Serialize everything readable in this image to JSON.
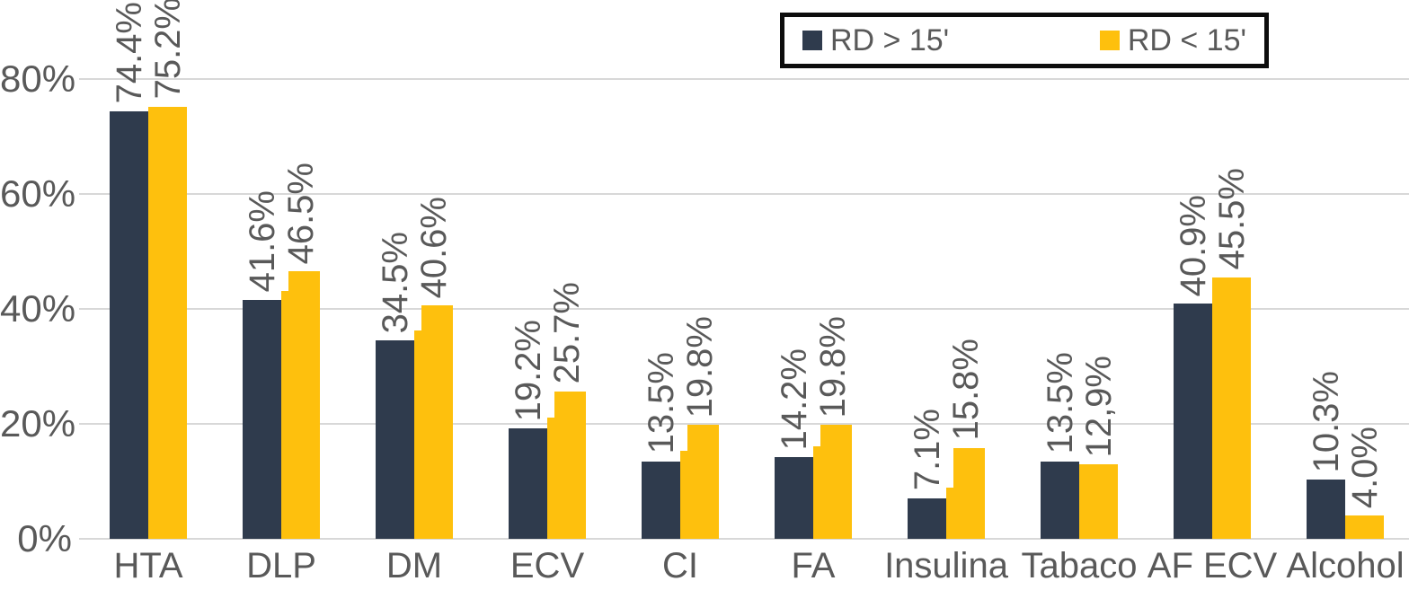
{
  "colors": {
    "bar_dark": "#2F3B4D",
    "bar_yellow": "#FEC00D",
    "text": "#595959",
    "gridline": "#D8D8D8",
    "legend_border": "#0D0D0D",
    "background": "#FFFFFF"
  },
  "chart_data": {
    "type": "bar",
    "title": "",
    "xlabel": "",
    "ylabel": "",
    "categories": [
      "HTA",
      "DLP",
      "DM",
      "ECV",
      "CI",
      "FA",
      "Insulina",
      "Tabaco",
      "AF ECV",
      "Alcohol"
    ],
    "series": [
      {
        "name": "RD > 15'",
        "color": "#2F3B4D",
        "values": [
          74.4,
          41.6,
          34.5,
          19.2,
          13.5,
          14.2,
          7.1,
          13.5,
          40.9,
          10.3
        ],
        "labels": [
          "74.4%",
          "41.6%",
          "34.5%",
          "19.2%",
          "13.5%",
          "14.2%",
          "7.1%",
          "13.5%",
          "40.9%",
          "10.3%"
        ]
      },
      {
        "name": "RD < 15'",
        "color": "#FEC00D",
        "values": [
          75.2,
          46.5,
          40.6,
          25.7,
          19.8,
          19.8,
          15.8,
          12.9,
          45.5,
          4.0
        ],
        "labels": [
          "75.2%",
          "46.5%",
          "40.6%",
          "25.7%",
          "19.8%",
          "19.8%",
          "15.8%",
          "12,9%",
          "45.5%",
          "4.0%"
        ],
        "left_notch_values": [
          null,
          43.2,
          36.2,
          21.1,
          15.3,
          16.1,
          8.9,
          null,
          null,
          null
        ]
      }
    ],
    "yticks": [
      {
        "value": 0,
        "label": "0%"
      },
      {
        "value": 20,
        "label": "20%"
      },
      {
        "value": 40,
        "label": "40%"
      },
      {
        "value": 60,
        "label": "60%"
      },
      {
        "value": 80,
        "label": "80%"
      }
    ],
    "ylim": [
      0,
      80
    ],
    "grid": true,
    "value_labels_rotated": true,
    "legend_position": "top-right"
  }
}
